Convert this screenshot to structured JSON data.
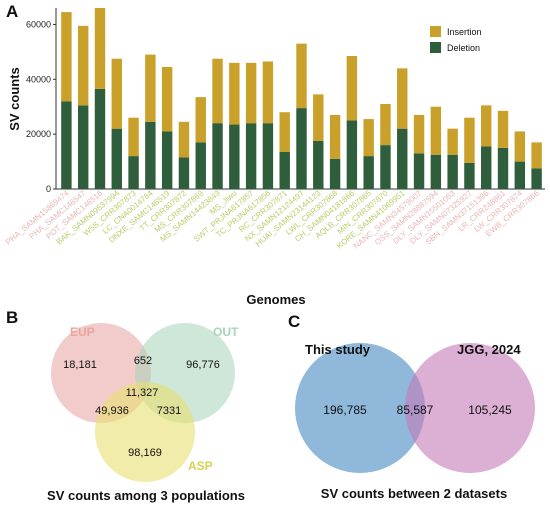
{
  "panel_labels": {
    "a": "A",
    "b": "B",
    "c": "C"
  },
  "chart_data": [
    {
      "type": "bar",
      "stacked": true,
      "xlabel": "Genomes",
      "ylabel": "SV counts",
      "ylim": [
        0,
        66000
      ],
      "yticks": [
        0,
        20000,
        40000,
        60000
      ],
      "grid": false,
      "legend_position": "top-right",
      "categories": [
        "PHA_SAMN15869474",
        "PHA_SAMC146547",
        "POT_SAMC146516",
        "BAK_SAMN09537994",
        "W5S_CRR307873",
        "LC_CNA0014784",
        "DNXE_SAMC146519",
        "TT_CRR307872",
        "MS_CRR307869",
        "MS_SAMN14423843",
        "MS_Jiwu",
        "SWT_PRJNA617857",
        "TC_PRJNA617856",
        "RC_CRR307871",
        "NX_SAMN12124497",
        "HUAI_SAMN23144123",
        "LWL_CRR307868",
        "CH_SAMN04181866",
        "AQLB_CRR307865",
        "MIN_CRR307870",
        "KORE_SAMN41069951",
        "NANC_SAMN34579007",
        "OSS_SAMN28887594",
        "DLY_SAMN15501053",
        "DLY_SAMN07325927",
        "SBN_SAMN37151396",
        "LR_CRR248861",
        "LW_CRR307874",
        "EWB_CRR307866"
      ],
      "category_colors": [
        "#e7b7b5",
        "#e7b7b5",
        "#e7b7b5",
        "#b8ce6a",
        "#b8ce6a",
        "#b8ce6a",
        "#b8ce6a",
        "#b8ce6a",
        "#b8ce6a",
        "#b8ce6a",
        "#b8ce6a",
        "#b8ce6a",
        "#b8ce6a",
        "#b8ce6a",
        "#b8ce6a",
        "#b8ce6a",
        "#b8ce6a",
        "#b8ce6a",
        "#b8ce6a",
        "#b8ce6a",
        "#b8ce6a",
        "#e7b7b5",
        "#e7b7b5",
        "#e7b7b5",
        "#e7b7b5",
        "#e7b7b5",
        "#e7b7b5",
        "#e7b7b5",
        "#e7b7b5"
      ],
      "series": [
        {
          "name": "Deletion",
          "color": "#2f5e3c",
          "values": [
            32000,
            30500,
            36500,
            22000,
            12000,
            24500,
            21000,
            11500,
            17000,
            24000,
            23500,
            24000,
            24000,
            13500,
            29500,
            17500,
            11000,
            25000,
            12000,
            16000,
            22000,
            13000,
            12500,
            12500,
            9500,
            15500,
            15000,
            10000,
            7500
          ]
        },
        {
          "name": "Insertion",
          "color": "#c9a02a",
          "values": [
            32500,
            29000,
            29500,
            25500,
            14000,
            24500,
            23500,
            13000,
            16500,
            23500,
            22500,
            22000,
            22500,
            14500,
            23500,
            17000,
            16000,
            23500,
            13500,
            15000,
            22000,
            14000,
            17500,
            9500,
            16500,
            15000,
            13500,
            11000,
            9500
          ]
        }
      ]
    },
    {
      "type": "venn",
      "sets": [
        "EUP",
        "OUT",
        "ASP"
      ],
      "set_colors": {
        "EUP": "#e8a3a0",
        "OUT": "#a8d4b8",
        "ASP": "#e8e070"
      },
      "regions": {
        "EUP": 18181,
        "OUT": 96776,
        "ASP": 98169,
        "EUP&OUT": 652,
        "EUP&ASP": 49936,
        "OUT&ASP": 7331,
        "EUP&OUT&ASP": 11327
      },
      "region_labels": {
        "EUP": "18,181",
        "OUT": "96,776",
        "ASP": "98,169",
        "EUP&OUT": "652",
        "EUP&ASP": "49,936",
        "OUT&ASP": "7331",
        "EUP&OUT&ASP": "11,327"
      },
      "caption": "SV counts among 3 populations"
    },
    {
      "type": "venn",
      "sets": [
        "This study",
        "JGG, 2024"
      ],
      "set_colors": {
        "This study": "#6aa0cf",
        "JGG, 2024": "#c57ab8"
      },
      "regions": {
        "This study": 196785,
        "JGG, 2024": 105245,
        "This study&JGG, 2024": 85587
      },
      "region_labels": {
        "This study": "196,785",
        "JGG, 2024": "105,245",
        "This study&JGG, 2024": "85,587"
      },
      "caption": "SV counts between 2 datasets"
    }
  ]
}
